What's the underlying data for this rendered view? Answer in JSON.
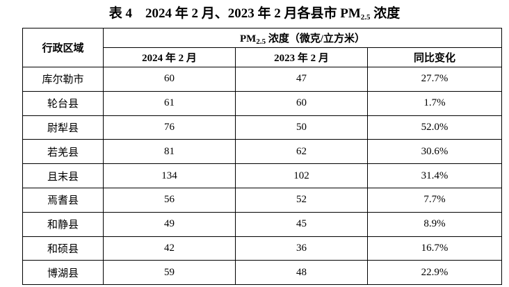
{
  "title": {
    "main": "表 4　2024 年 2 月、2023 年 2 月各县市 PM",
    "sub": "2.5",
    "tail": " 浓度"
  },
  "table": {
    "region_header": "行政区域",
    "group_header": {
      "main": "PM",
      "sub": "2.5",
      "tail": " 浓度（微克/立方米）"
    },
    "columns": [
      "2024 年 2 月",
      "2023 年 2 月",
      "同比变化"
    ],
    "rows": [
      [
        "库尔勒市",
        "60",
        "47",
        "27.7%"
      ],
      [
        "轮台县",
        "61",
        "60",
        "1.7%"
      ],
      [
        "尉犁县",
        "76",
        "50",
        "52.0%"
      ],
      [
        "若羌县",
        "81",
        "62",
        "30.6%"
      ],
      [
        "且末县",
        "134",
        "102",
        "31.4%"
      ],
      [
        "焉耆县",
        "56",
        "52",
        "7.7%"
      ],
      [
        "和静县",
        "49",
        "45",
        "8.9%"
      ],
      [
        "和硕县",
        "42",
        "36",
        "16.7%"
      ],
      [
        "博湖县",
        "59",
        "48",
        "22.9%"
      ]
    ]
  }
}
